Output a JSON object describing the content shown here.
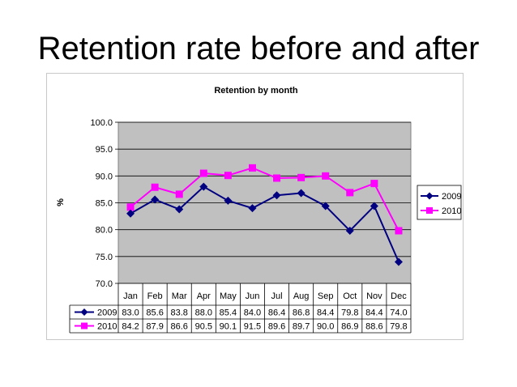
{
  "slide": {
    "title": "Retention rate before and after"
  },
  "chart_data": {
    "type": "line",
    "title": "Retention by month",
    "xlabel": "",
    "ylabel": "%",
    "categories": [
      "Jan",
      "Feb",
      "Mar",
      "Apr",
      "May",
      "Jun",
      "Jul",
      "Aug",
      "Sep",
      "Oct",
      "Nov",
      "Dec"
    ],
    "ylim": [
      70.0,
      100.0
    ],
    "yticks": [
      "70.0",
      "75.0",
      "80.0",
      "85.0",
      "90.0",
      "95.0",
      "100.0"
    ],
    "grid": true,
    "legend_position": "right",
    "series": [
      {
        "name": "2009",
        "color": "#000080",
        "marker": "diamond",
        "values": [
          83.0,
          85.6,
          83.8,
          88.0,
          85.4,
          84.0,
          86.4,
          86.8,
          84.4,
          79.8,
          84.4,
          74.0
        ],
        "labels": [
          "83.0",
          "85.6",
          "83.8",
          "88.0",
          "85.4",
          "84.0",
          "86.4",
          "86.8",
          "84.4",
          "79.8",
          "84.4",
          "74.0"
        ]
      },
      {
        "name": "2010",
        "color": "#FF00FF",
        "marker": "square",
        "values": [
          84.2,
          87.9,
          86.6,
          90.5,
          90.1,
          91.5,
          89.6,
          89.7,
          90.0,
          86.9,
          88.6,
          79.8
        ],
        "labels": [
          "84.2",
          "87.9",
          "86.6",
          "90.5",
          "90.1",
          "91.5",
          "89.6",
          "89.7",
          "90.0",
          "86.9",
          "88.6",
          "79.8"
        ]
      }
    ],
    "plot_background": "#C0C0C0"
  }
}
